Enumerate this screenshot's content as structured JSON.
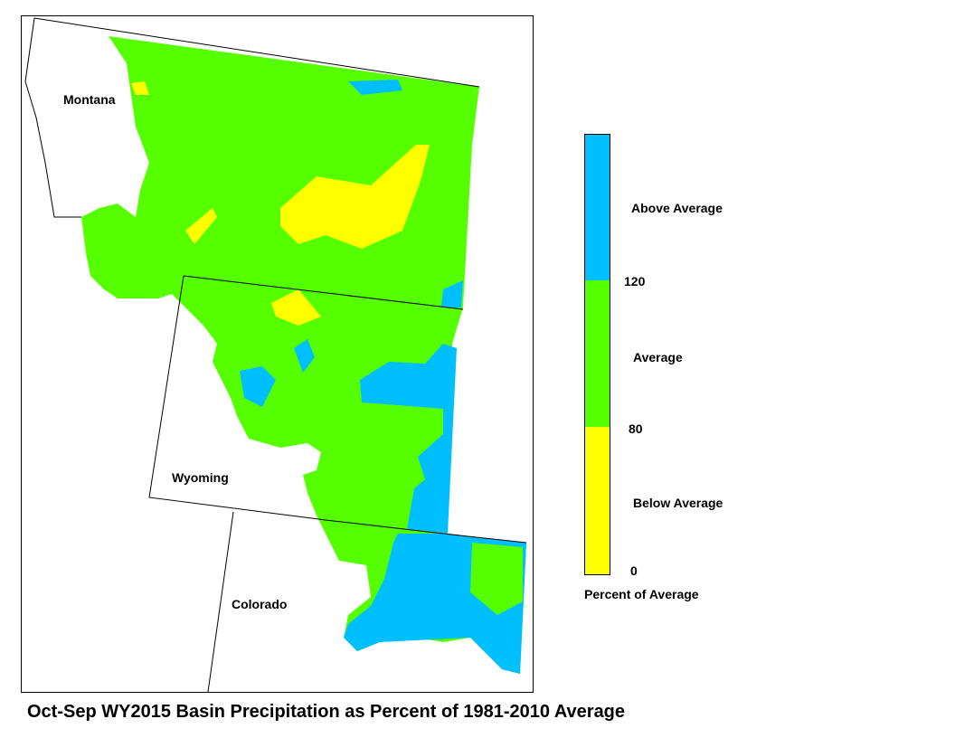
{
  "map": {
    "title": "Oct-Sep WY2015 Basin Precipitation as Percent of 1981-2010 Average",
    "states": [
      "Montana",
      "Wyoming",
      "Colorado"
    ],
    "legend": {
      "items": [
        {
          "label": "Above Average",
          "color": "#00bfff"
        },
        {
          "label": "Average",
          "color": "#55ff00"
        },
        {
          "label": "Below Average",
          "color": "#ffff00"
        }
      ],
      "breaks": [
        120,
        80,
        0
      ],
      "caption": "Percent of Average"
    }
  }
}
